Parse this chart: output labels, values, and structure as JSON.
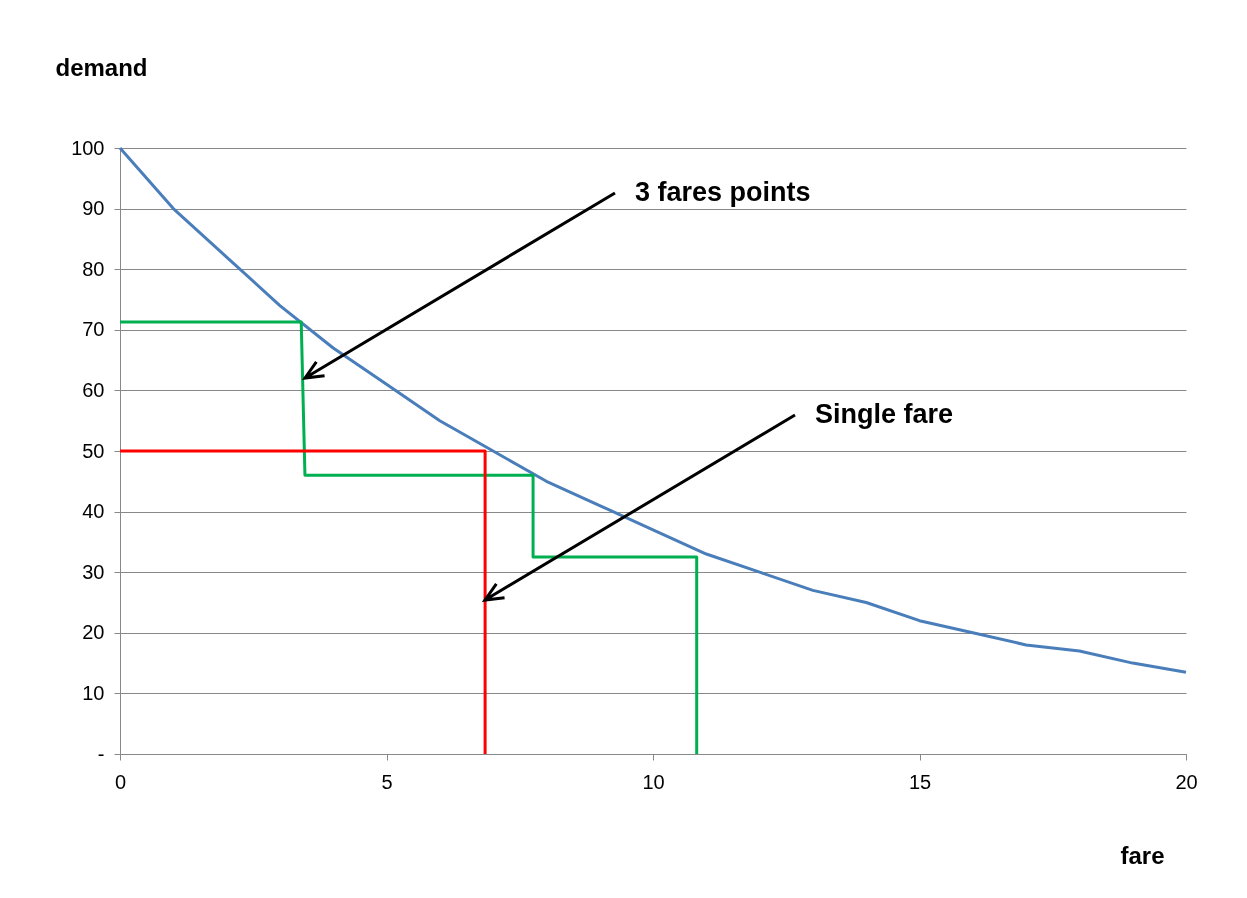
{
  "chart_data": {
    "type": "line",
    "xlabel": "fare",
    "ylabel": "demand",
    "xlim": [
      0,
      20
    ],
    "xticks": [
      0,
      5,
      10,
      15,
      20
    ],
    "ylim": [
      0,
      100
    ],
    "yticks": [
      {
        "value": 0,
        "label": "-"
      },
      10,
      20,
      30,
      40,
      50,
      60,
      70,
      80,
      90,
      100
    ],
    "grid": "y",
    "marker": "none",
    "line_style": "solid",
    "series": [
      {
        "color": "#4a7ebb",
        "x": [
          0,
          1,
          2,
          3,
          4,
          5,
          6,
          7,
          8,
          9,
          10,
          11,
          12,
          13,
          14,
          15,
          16,
          17,
          18,
          19,
          20
        ],
        "values": [
          100,
          90,
          82,
          74,
          67,
          61,
          55,
          50,
          45,
          41,
          37,
          33,
          30,
          27,
          25,
          22,
          20,
          18,
          17,
          15,
          13.5
        ]
      },
      {
        "color": "#00b050",
        "x": [
          0,
          3.4,
          3.47,
          7.75,
          7.75,
          10.82,
          10.82
        ],
        "values": [
          71.3,
          71.3,
          46,
          46,
          32.5,
          32.5,
          0
        ]
      },
      {
        "color": "#ff0000",
        "x": [
          0,
          6.85,
          6.85
        ],
        "values": [
          50,
          50,
          0
        ]
      }
    ],
    "annotations": [
      "3 fares points",
      "Single fare"
    ]
  }
}
